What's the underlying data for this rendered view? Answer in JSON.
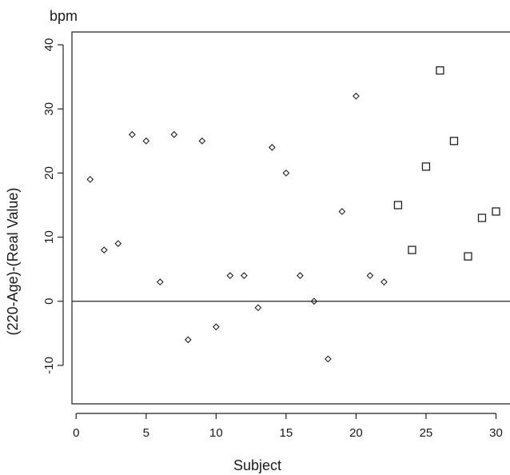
{
  "chart_data": {
    "type": "scatter",
    "unit_label": "bpm",
    "xlabel": "Subject",
    "ylabel": "(220-Age)-(Real Value)",
    "xlim": [
      -0.3,
      31
    ],
    "ylim": [
      -16,
      42
    ],
    "x_ticks": [
      0,
      5,
      10,
      15,
      20,
      25,
      30
    ],
    "y_ticks": [
      -10,
      0,
      10,
      20,
      30,
      40
    ],
    "reference_line_y": 0,
    "grid": false,
    "series": [
      {
        "marker": "diamond",
        "points": [
          {
            "x": 1,
            "y": 19
          },
          {
            "x": 2,
            "y": 8
          },
          {
            "x": 3,
            "y": 9
          },
          {
            "x": 4,
            "y": 26
          },
          {
            "x": 5,
            "y": 25
          },
          {
            "x": 6,
            "y": 3
          },
          {
            "x": 7,
            "y": 26
          },
          {
            "x": 8,
            "y": -6
          },
          {
            "x": 9,
            "y": 25
          },
          {
            "x": 10,
            "y": -4
          },
          {
            "x": 11,
            "y": 4
          },
          {
            "x": 12,
            "y": 4
          },
          {
            "x": 13,
            "y": -1
          },
          {
            "x": 14,
            "y": 24
          },
          {
            "x": 15,
            "y": 20
          },
          {
            "x": 16,
            "y": 4
          },
          {
            "x": 17,
            "y": 0
          },
          {
            "x": 18,
            "y": -9
          },
          {
            "x": 19,
            "y": 14
          },
          {
            "x": 20,
            "y": 32
          },
          {
            "x": 21,
            "y": 4
          },
          {
            "x": 22,
            "y": 3
          }
        ]
      },
      {
        "marker": "square",
        "points": [
          {
            "x": 23,
            "y": 15
          },
          {
            "x": 24,
            "y": 8
          },
          {
            "x": 25,
            "y": 21
          },
          {
            "x": 26,
            "y": 36
          },
          {
            "x": 27,
            "y": 25
          },
          {
            "x": 28,
            "y": 7
          },
          {
            "x": 29,
            "y": 13
          },
          {
            "x": 30,
            "y": 14
          }
        ]
      }
    ]
  }
}
